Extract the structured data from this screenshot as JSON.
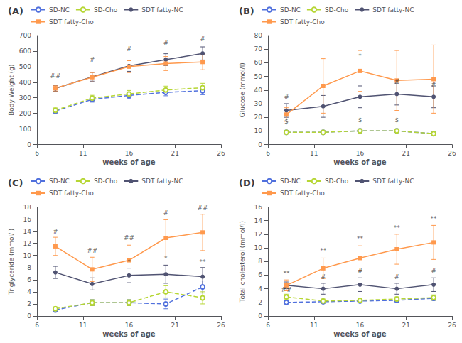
{
  "chart_data": [
    {
      "type": "line",
      "title": "(A)",
      "x_label": "weeks of age",
      "y_label": "Body Weight (g)",
      "x": [
        8,
        12,
        16,
        20,
        24
      ],
      "xlim": [
        6,
        26
      ],
      "xticks": [
        6,
        11,
        16,
        21,
        26
      ],
      "ylim": [
        0,
        700
      ],
      "yticks": [
        0,
        100,
        200,
        300,
        400,
        500,
        600,
        700
      ],
      "grid": false,
      "legend": "top",
      "series": [
        {
          "name": "SD-NC",
          "values": [
            215,
            290,
            315,
            335,
            345
          ],
          "yerr": [
            15,
            18,
            20,
            22,
            25
          ],
          "line_style": "dashed",
          "marker": "open_circle"
        },
        {
          "name": "SD-Cho",
          "values": [
            220,
            298,
            325,
            350,
            365
          ],
          "yerr": [
            15,
            18,
            22,
            25,
            28
          ],
          "line_style": "dashed",
          "marker": "open_circle"
        },
        {
          "name": "SDT fatty-NC",
          "values": [
            360,
            435,
            505,
            545,
            585
          ],
          "yerr": [
            18,
            28,
            35,
            38,
            42
          ],
          "line_style": "solid",
          "marker": "circle"
        },
        {
          "name": "SDT fatty-Cho",
          "values": [
            362,
            432,
            500,
            520,
            530
          ],
          "yerr": [
            18,
            30,
            38,
            45,
            50
          ],
          "line_style": "solid",
          "marker": "square"
        }
      ],
      "annotations": [
        {
          "x": 8,
          "y": 415,
          "text": "##"
        },
        {
          "x": 12,
          "y": 520,
          "text": "#"
        },
        {
          "x": 16,
          "y": 590,
          "text": "#"
        },
        {
          "x": 20,
          "y": 625,
          "text": "#"
        },
        {
          "x": 24,
          "y": 650,
          "text": "#"
        }
      ]
    },
    {
      "type": "line",
      "title": "(B)",
      "x_label": "weeks of age",
      "y_label": "Glucose (mmol/l)",
      "x": [
        8,
        12,
        16,
        20,
        24
      ],
      "xlim": [
        6,
        26
      ],
      "xticks": [
        6,
        11,
        16,
        21,
        26
      ],
      "ylim": [
        0,
        80
      ],
      "yticks": [
        0,
        10,
        20,
        30,
        40,
        50,
        60,
        70,
        80
      ],
      "grid": false,
      "legend": "top",
      "series": [
        {
          "name": "SD-NC",
          "values": [
            9,
            9,
            10,
            10,
            8
          ],
          "yerr": [
            1,
            1,
            1,
            1,
            1
          ],
          "line_style": "dashed",
          "marker": "open_circle"
        },
        {
          "name": "SD-Cho",
          "values": [
            9,
            9,
            10,
            10,
            8
          ],
          "yerr": [
            1,
            1,
            1,
            1,
            1
          ],
          "line_style": "dashed",
          "marker": "open_circle"
        },
        {
          "name": "SDT fatty-NC",
          "values": [
            25,
            28,
            35,
            37,
            35
          ],
          "yerr": [
            5,
            8,
            8,
            8,
            8
          ],
          "line_style": "solid",
          "marker": "circle"
        },
        {
          "name": "SDT fatty-Cho",
          "values": [
            22,
            43,
            54,
            47,
            48
          ],
          "yerr": [
            5,
            20,
            15,
            22,
            25
          ],
          "line_style": "solid",
          "marker": "square"
        }
      ],
      "annotations": [
        {
          "x": 8,
          "y": 32,
          "text": "#"
        },
        {
          "x": 8,
          "y": 14,
          "text": "$"
        },
        {
          "x": 16,
          "y": 62,
          "text": "*"
        },
        {
          "x": 16,
          "y": 15,
          "text": "$"
        },
        {
          "x": 20,
          "y": 15,
          "text": "$"
        },
        {
          "x": 20,
          "y": 43,
          "text": "#"
        },
        {
          "x": 24,
          "y": 41,
          "text": "#"
        }
      ]
    },
    {
      "type": "line",
      "title": "(C)",
      "x_label": "weeks of age",
      "y_label": "Triglyceride (mmol/l)",
      "x": [
        8,
        12,
        16,
        20,
        24
      ],
      "xlim": [
        6,
        26
      ],
      "xticks": [
        6,
        11,
        16,
        21,
        26
      ],
      "ylim": [
        0,
        18
      ],
      "yticks": [
        0,
        2,
        4,
        6,
        8,
        10,
        12,
        14,
        16,
        18
      ],
      "grid": false,
      "legend": "top",
      "series": [
        {
          "name": "SD-NC",
          "values": [
            1.0,
            2.2,
            2.2,
            2.0,
            4.8
          ],
          "yerr": [
            0.3,
            0.5,
            0.5,
            0.8,
            1.0
          ],
          "line_style": "dashed",
          "marker": "open_circle"
        },
        {
          "name": "SD-Cho",
          "values": [
            1.2,
            2.2,
            2.2,
            4.0,
            3.0
          ],
          "yerr": [
            0.3,
            0.5,
            0.5,
            1.0,
            1.0
          ],
          "line_style": "dashed",
          "marker": "open_circle"
        },
        {
          "name": "SDT fatty-NC",
          "values": [
            7.2,
            5.3,
            6.7,
            6.9,
            6.5
          ],
          "yerr": [
            1.0,
            1.0,
            1.2,
            1.5,
            1.5
          ],
          "line_style": "solid",
          "marker": "circle"
        },
        {
          "name": "SDT fatty-Cho",
          "values": [
            11.5,
            7.7,
            9.2,
            12.9,
            13.8
          ],
          "yerr": [
            1.5,
            2.0,
            2.5,
            3.0,
            3.0
          ],
          "line_style": "solid",
          "marker": "square"
        }
      ],
      "annotations": [
        {
          "x": 8,
          "y": 13.3,
          "text": "#"
        },
        {
          "x": 12,
          "y": 10.2,
          "text": "##"
        },
        {
          "x": 16,
          "y": 12.2,
          "text": "##"
        },
        {
          "x": 16,
          "y": 8.3,
          "text": "*"
        },
        {
          "x": 20,
          "y": 16.3,
          "text": "#"
        },
        {
          "x": 20,
          "y": 8.8,
          "text": "*"
        },
        {
          "x": 24,
          "y": 17.2,
          "text": "##"
        },
        {
          "x": 24,
          "y": 8.3,
          "text": "**"
        }
      ]
    },
    {
      "type": "line",
      "title": "(D)",
      "x_label": "weeks of age",
      "y_label": "Total cholesterol (mmol/l)",
      "x": [
        8,
        12,
        16,
        20,
        24
      ],
      "xlim": [
        6,
        26
      ],
      "xticks": [
        6,
        11,
        16,
        21,
        26
      ],
      "ylim": [
        0,
        16
      ],
      "yticks": [
        0,
        2,
        4,
        6,
        8,
        10,
        12,
        14,
        16
      ],
      "grid": false,
      "legend": "top",
      "series": [
        {
          "name": "SD-NC",
          "values": [
            2.0,
            2.1,
            2.2,
            2.3,
            2.6
          ],
          "yerr": [
            0.2,
            0.2,
            0.2,
            0.2,
            0.3
          ],
          "line_style": "dashed",
          "marker": "open_circle"
        },
        {
          "name": "SD-Cho",
          "values": [
            2.8,
            2.2,
            2.3,
            2.5,
            2.7
          ],
          "yerr": [
            0.4,
            0.3,
            0.3,
            0.3,
            0.4
          ],
          "line_style": "dashed",
          "marker": "open_circle"
        },
        {
          "name": "SDT fatty-NC",
          "values": [
            4.5,
            4.0,
            4.6,
            4.0,
            4.6
          ],
          "yerr": [
            0.5,
            0.8,
            1.0,
            0.8,
            1.0
          ],
          "line_style": "solid",
          "marker": "circle"
        },
        {
          "name": "SDT fatty-Cho",
          "values": [
            4.5,
            7.0,
            8.5,
            9.8,
            10.8
          ],
          "yerr": [
            0.8,
            1.5,
            1.8,
            2.2,
            2.5
          ],
          "line_style": "solid",
          "marker": "square"
        }
      ],
      "annotations": [
        {
          "x": 8,
          "y": 5.7,
          "text": "**"
        },
        {
          "x": 8,
          "y": 3.3,
          "text": "##"
        },
        {
          "x": 12,
          "y": 9.0,
          "text": "**"
        },
        {
          "x": 12,
          "y": 5.2,
          "text": "#"
        },
        {
          "x": 16,
          "y": 10.8,
          "text": "**"
        },
        {
          "x": 16,
          "y": 6.0,
          "text": "#"
        },
        {
          "x": 20,
          "y": 12.4,
          "text": "**"
        },
        {
          "x": 20,
          "y": 5.2,
          "text": "#"
        },
        {
          "x": 24,
          "y": 13.7,
          "text": "**"
        },
        {
          "x": 24,
          "y": 6.0,
          "text": "#"
        }
      ]
    }
  ]
}
